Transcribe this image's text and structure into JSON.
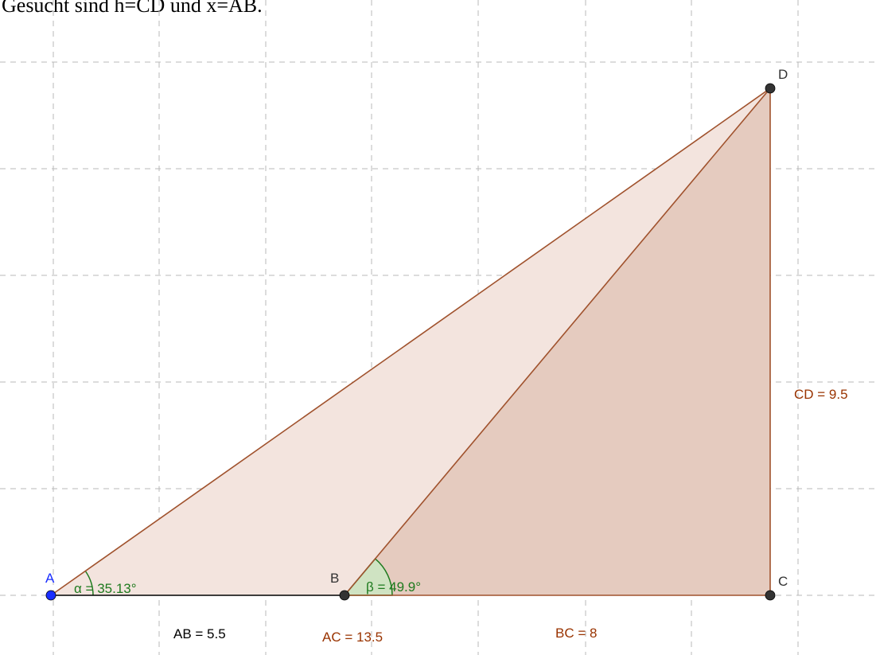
{
  "caption": "Gesucht sind h=CD und x=AB.",
  "points": {
    "A": {
      "label": "A",
      "color": "#1a2eff"
    },
    "B": {
      "label": "B",
      "color": "#333333"
    },
    "C": {
      "label": "C",
      "color": "#333333"
    },
    "D": {
      "label": "D",
      "color": "#333333"
    }
  },
  "angles": {
    "alpha": {
      "label": "α = 35.13°",
      "color": "#1e7a1e"
    },
    "beta": {
      "label": "β = 49.9°",
      "color": "#1e7a1e"
    }
  },
  "segments": {
    "AB": {
      "label": "AB = 5.5",
      "color": "#000000"
    },
    "AC": {
      "label": "AC = 13.5",
      "color": "#993300"
    },
    "BC": {
      "label": "BC = 8",
      "color": "#993300"
    },
    "CD": {
      "label": "CD = 9.5",
      "color": "#993300"
    }
  },
  "colors": {
    "triangle_edge": "#a0522d",
    "triangle_fill_light": "#f3e4de",
    "triangle_fill_dark": "#e5cbbf",
    "grid": "#b8b8b8",
    "angle_fill": "#cfe3c2"
  }
}
